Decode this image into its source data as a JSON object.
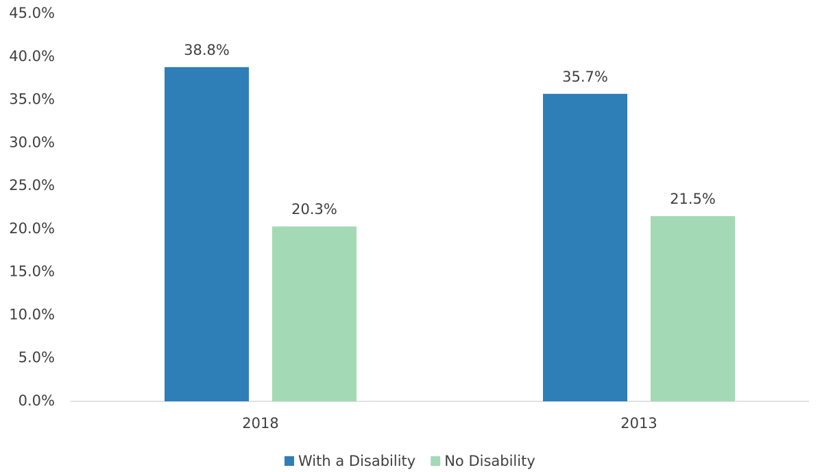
{
  "chart_data": {
    "type": "bar",
    "categories": [
      "2018",
      "2013"
    ],
    "series": [
      {
        "name": "With a Disability",
        "color": "#2e7eb8",
        "values": [
          38.8,
          35.7
        ],
        "value_labels": [
          "38.8%",
          "35.7%"
        ]
      },
      {
        "name": "No Disability",
        "color": "#a3dab5",
        "values": [
          20.3,
          21.5
        ],
        "value_labels": [
          "20.3%",
          "21.5%"
        ]
      }
    ],
    "ylim": [
      0,
      45
    ],
    "yticks": [
      {
        "value": 0,
        "label": "0.0%"
      },
      {
        "value": 5,
        "label": "5.0%"
      },
      {
        "value": 10,
        "label": "10.0%"
      },
      {
        "value": 15,
        "label": "15.0%"
      },
      {
        "value": 20,
        "label": "20.0%"
      },
      {
        "value": 25,
        "label": "25.0%"
      },
      {
        "value": 30,
        "label": "30.0%"
      },
      {
        "value": 35,
        "label": "35.0%"
      },
      {
        "value": 40,
        "label": "40.0%"
      },
      {
        "value": 45,
        "label": "45.0%"
      }
    ],
    "grid": false,
    "legend": "bottom"
  }
}
